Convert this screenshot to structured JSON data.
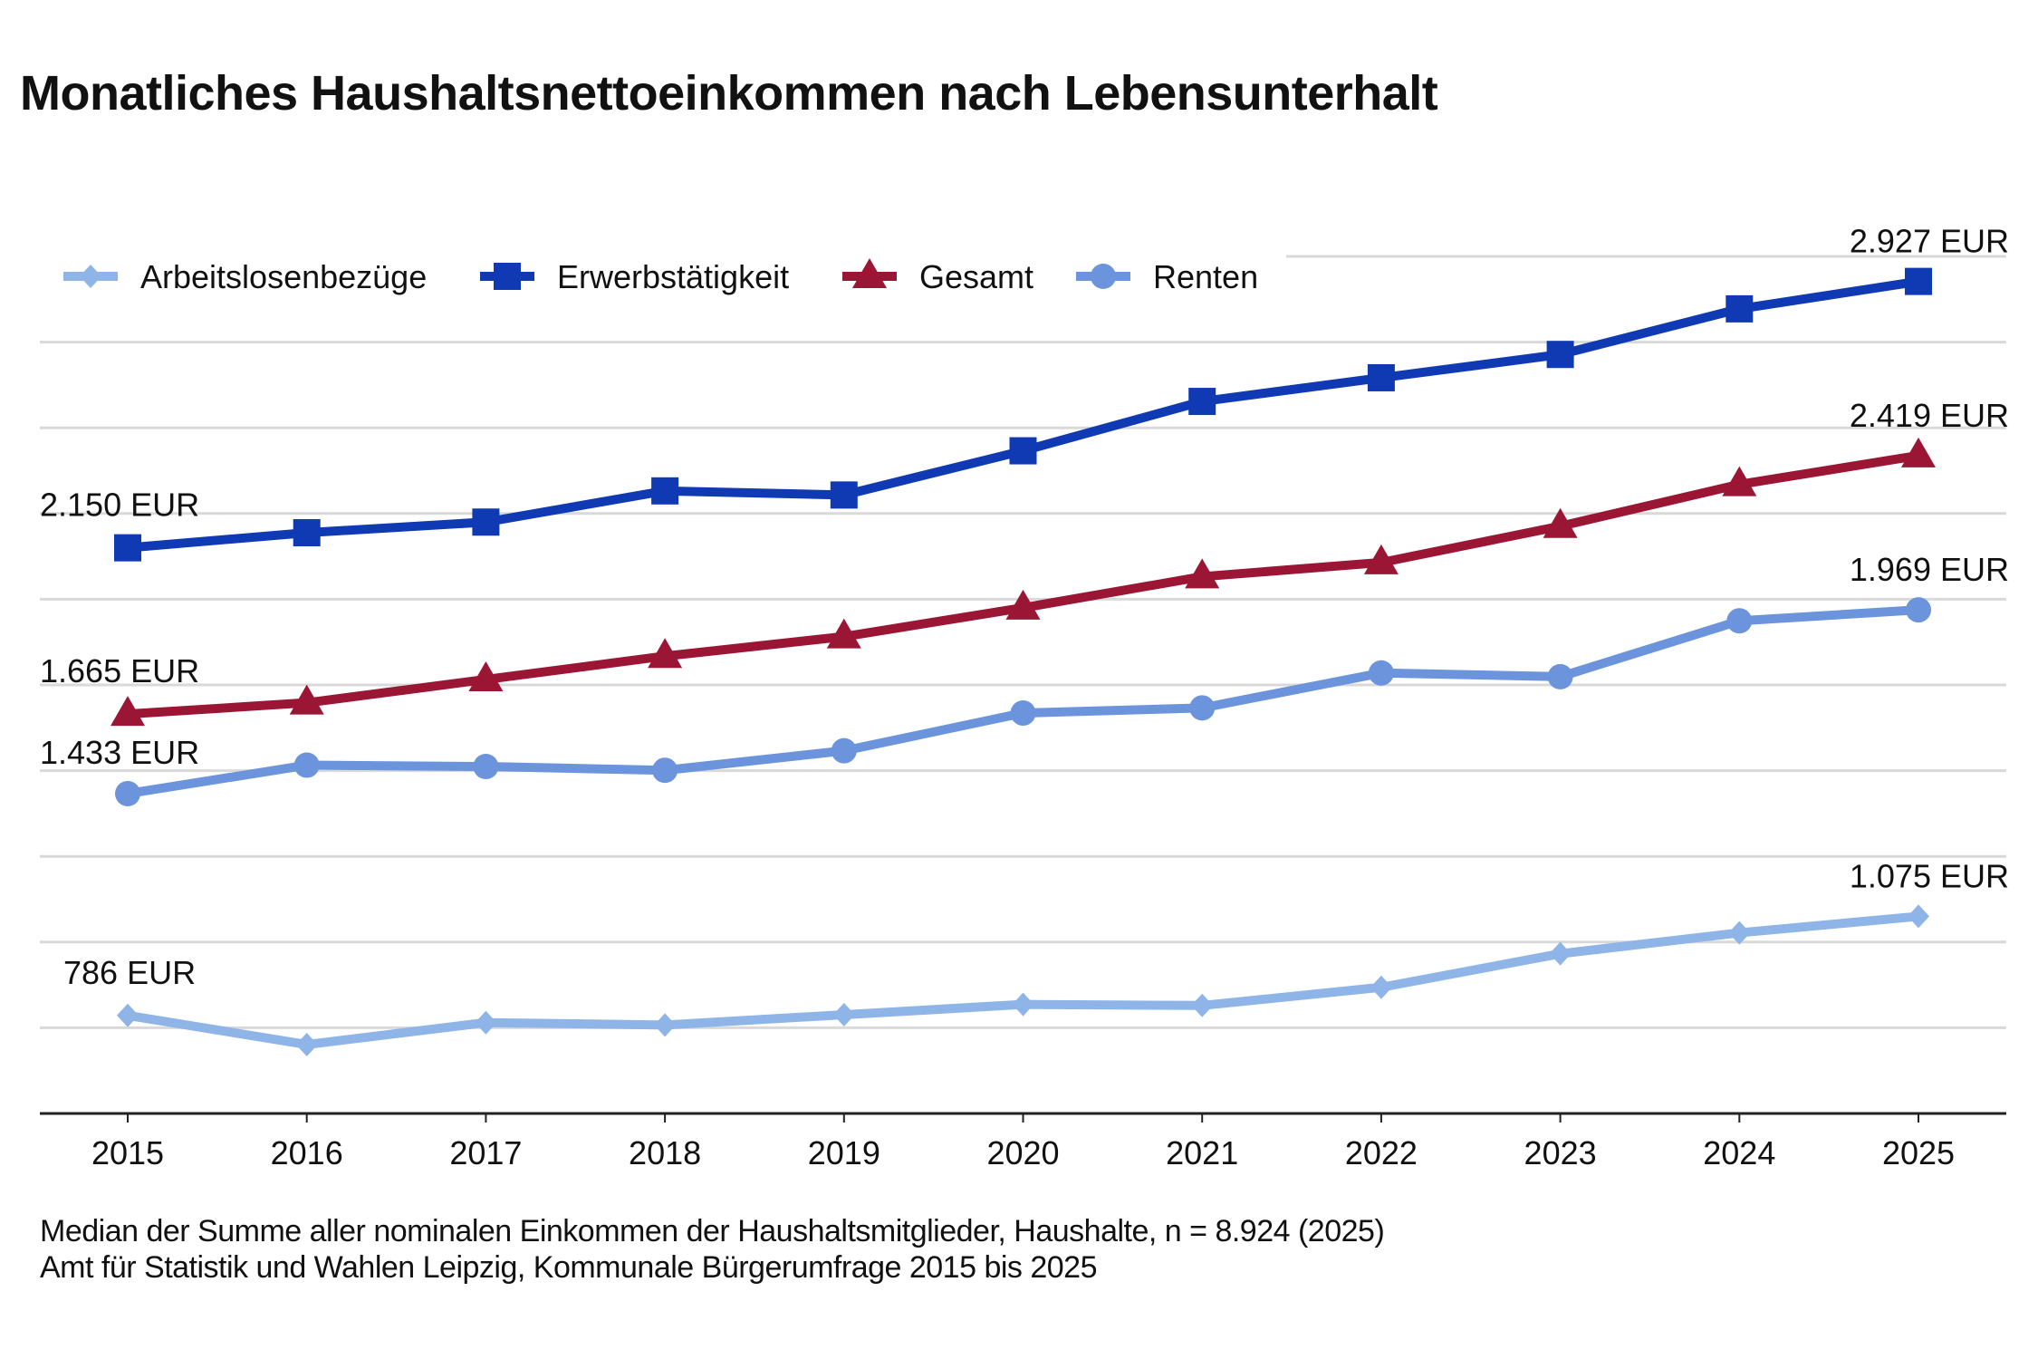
{
  "chart_data": {
    "type": "line",
    "title": "Monatliches Haushaltsnettoeinkommen nach Lebensunterhalt",
    "xlabel": "",
    "ylabel": "",
    "x": [
      "2015",
      "2016",
      "2017",
      "2018",
      "2019",
      "2020",
      "2021",
      "2022",
      "2023",
      "2024",
      "2025"
    ],
    "ylim": [
      500,
      3000
    ],
    "ytick_step": 250,
    "grid": true,
    "y_tick_labels_shown": false,
    "legend_position": "top-left",
    "series": [
      {
        "name": "Arbeitslosenbezüge",
        "color": "#8fb4e8",
        "marker": "diamond",
        "values": [
          786,
          701,
          765,
          758,
          788,
          818,
          815,
          868,
          966,
          1027,
          1075
        ],
        "start_label": "786 EUR",
        "end_label": "1.075 EUR"
      },
      {
        "name": "Erwerbstätigkeit",
        "color": "#0f3ab4",
        "marker": "square",
        "values": [
          2150,
          2194,
          2225,
          2316,
          2304,
          2433,
          2577,
          2646,
          2714,
          2847,
          2927
        ],
        "start_label": "2.150 EUR",
        "end_label": "2.927 EUR"
      },
      {
        "name": "Gesamt",
        "color": "#9b1535",
        "marker": "triangle",
        "values": [
          1665,
          1698,
          1766,
          1834,
          1891,
          1975,
          2066,
          2107,
          2213,
          2335,
          2419
        ],
        "start_label": "1.665 EUR",
        "end_label": "2.419 EUR"
      },
      {
        "name": "Renten",
        "color": "#6b94dc",
        "marker": "circle",
        "values": [
          1433,
          1516,
          1512,
          1501,
          1558,
          1668,
          1683,
          1785,
          1774,
          1937,
          1969
        ],
        "start_label": "1.433 EUR",
        "end_label": "1.969 EUR"
      }
    ]
  },
  "footer": {
    "note": "Median der Summe aller nominalen Einkommen der Haushaltsmitglieder, Haushalte, n = 8.924 (2025)",
    "source": "Amt für Statistik und Wahlen Leipzig, Kommunale Bürgerumfrage 2015 bis 2025"
  },
  "colors": {
    "grid": "#d9d9d9",
    "axis": "#222222"
  }
}
